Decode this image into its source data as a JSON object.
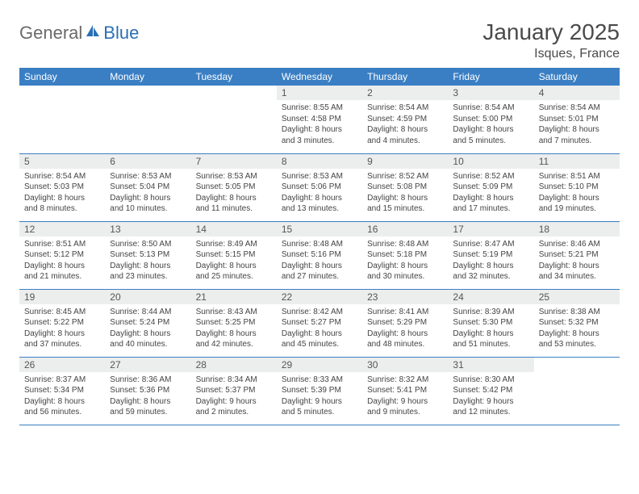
{
  "brand": {
    "general": "General",
    "blue": "Blue"
  },
  "title": "January 2025",
  "location": "Isques, France",
  "colors": {
    "header_bg": "#3a7fc4",
    "header_fg": "#ffffff",
    "daynum_bg": "#eceded",
    "border": "#3a7fc4",
    "logo_general": "#6a6a6a",
    "logo_blue": "#2a6fb5"
  },
  "dayHeaders": [
    "Sunday",
    "Monday",
    "Tuesday",
    "Wednesday",
    "Thursday",
    "Friday",
    "Saturday"
  ],
  "weeks": [
    [
      null,
      null,
      null,
      {
        "n": "1",
        "sr": "8:55 AM",
        "ss": "4:58 PM",
        "dh": 8,
        "dm": 3
      },
      {
        "n": "2",
        "sr": "8:54 AM",
        "ss": "4:59 PM",
        "dh": 8,
        "dm": 4
      },
      {
        "n": "3",
        "sr": "8:54 AM",
        "ss": "5:00 PM",
        "dh": 8,
        "dm": 5
      },
      {
        "n": "4",
        "sr": "8:54 AM",
        "ss": "5:01 PM",
        "dh": 8,
        "dm": 7
      }
    ],
    [
      {
        "n": "5",
        "sr": "8:54 AM",
        "ss": "5:03 PM",
        "dh": 8,
        "dm": 8
      },
      {
        "n": "6",
        "sr": "8:53 AM",
        "ss": "5:04 PM",
        "dh": 8,
        "dm": 10
      },
      {
        "n": "7",
        "sr": "8:53 AM",
        "ss": "5:05 PM",
        "dh": 8,
        "dm": 11
      },
      {
        "n": "8",
        "sr": "8:53 AM",
        "ss": "5:06 PM",
        "dh": 8,
        "dm": 13
      },
      {
        "n": "9",
        "sr": "8:52 AM",
        "ss": "5:08 PM",
        "dh": 8,
        "dm": 15
      },
      {
        "n": "10",
        "sr": "8:52 AM",
        "ss": "5:09 PM",
        "dh": 8,
        "dm": 17
      },
      {
        "n": "11",
        "sr": "8:51 AM",
        "ss": "5:10 PM",
        "dh": 8,
        "dm": 19
      }
    ],
    [
      {
        "n": "12",
        "sr": "8:51 AM",
        "ss": "5:12 PM",
        "dh": 8,
        "dm": 21
      },
      {
        "n": "13",
        "sr": "8:50 AM",
        "ss": "5:13 PM",
        "dh": 8,
        "dm": 23
      },
      {
        "n": "14",
        "sr": "8:49 AM",
        "ss": "5:15 PM",
        "dh": 8,
        "dm": 25
      },
      {
        "n": "15",
        "sr": "8:48 AM",
        "ss": "5:16 PM",
        "dh": 8,
        "dm": 27
      },
      {
        "n": "16",
        "sr": "8:48 AM",
        "ss": "5:18 PM",
        "dh": 8,
        "dm": 30
      },
      {
        "n": "17",
        "sr": "8:47 AM",
        "ss": "5:19 PM",
        "dh": 8,
        "dm": 32
      },
      {
        "n": "18",
        "sr": "8:46 AM",
        "ss": "5:21 PM",
        "dh": 8,
        "dm": 34
      }
    ],
    [
      {
        "n": "19",
        "sr": "8:45 AM",
        "ss": "5:22 PM",
        "dh": 8,
        "dm": 37
      },
      {
        "n": "20",
        "sr": "8:44 AM",
        "ss": "5:24 PM",
        "dh": 8,
        "dm": 40
      },
      {
        "n": "21",
        "sr": "8:43 AM",
        "ss": "5:25 PM",
        "dh": 8,
        "dm": 42
      },
      {
        "n": "22",
        "sr": "8:42 AM",
        "ss": "5:27 PM",
        "dh": 8,
        "dm": 45
      },
      {
        "n": "23",
        "sr": "8:41 AM",
        "ss": "5:29 PM",
        "dh": 8,
        "dm": 48
      },
      {
        "n": "24",
        "sr": "8:39 AM",
        "ss": "5:30 PM",
        "dh": 8,
        "dm": 51
      },
      {
        "n": "25",
        "sr": "8:38 AM",
        "ss": "5:32 PM",
        "dh": 8,
        "dm": 53
      }
    ],
    [
      {
        "n": "26",
        "sr": "8:37 AM",
        "ss": "5:34 PM",
        "dh": 8,
        "dm": 56
      },
      {
        "n": "27",
        "sr": "8:36 AM",
        "ss": "5:36 PM",
        "dh": 8,
        "dm": 59
      },
      {
        "n": "28",
        "sr": "8:34 AM",
        "ss": "5:37 PM",
        "dh": 9,
        "dm": 2
      },
      {
        "n": "29",
        "sr": "8:33 AM",
        "ss": "5:39 PM",
        "dh": 9,
        "dm": 5
      },
      {
        "n": "30",
        "sr": "8:32 AM",
        "ss": "5:41 PM",
        "dh": 9,
        "dm": 9
      },
      {
        "n": "31",
        "sr": "8:30 AM",
        "ss": "5:42 PM",
        "dh": 9,
        "dm": 12
      },
      null
    ]
  ]
}
